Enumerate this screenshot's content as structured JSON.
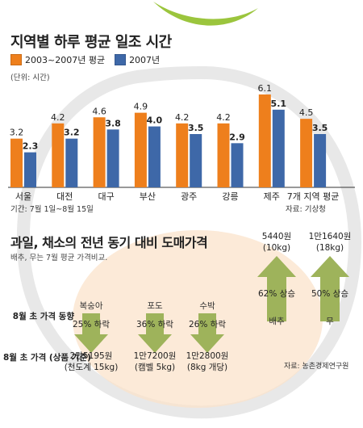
{
  "title": "지역별 하루 평균 일조 시간",
  "legend": {
    "series_a": "2003~2007년 평균",
    "series_b": "2007년"
  },
  "unit": "(단위: 시간)",
  "period": "기간: 7월 1일~8월 15일",
  "source": "자료: 기상청",
  "colors": {
    "series_a": "#ee7f1c",
    "series_b": "#3e68a8",
    "arrow": "#9eb35b",
    "peach": "#fbd8b3"
  },
  "chart_data": [
    {
      "type": "bar",
      "title": "지역별 하루 평균 일조 시간",
      "ylabel": "(단위: 시간)",
      "categories": [
        "서울",
        "대전",
        "대구",
        "부산",
        "광주",
        "강릉",
        "제주",
        "7개 지역 평균"
      ],
      "series": [
        {
          "name": "2003~2007년 평균",
          "values": [
            3.2,
            4.2,
            4.6,
            4.9,
            4.2,
            4.2,
            6.1,
            4.5
          ]
        },
        {
          "name": "2007년",
          "values": [
            2.3,
            3.2,
            3.8,
            4.0,
            3.5,
            2.9,
            5.1,
            3.5
          ]
        }
      ],
      "ylim": [
        0,
        7
      ],
      "grid": false,
      "legend_position": "top-left"
    },
    {
      "type": "table",
      "title": "과일, 채소의 전년 동기 대비 도매가격",
      "subtitle": "배추, 무는 7월 평균 가격비교.",
      "row_labels": {
        "trend": "8월 초 가격 동향",
        "price": "8월 초 가격 (상품 기준)"
      },
      "items": [
        {
          "name": "복숭아",
          "change_label": "25% 하락",
          "direction": "down",
          "price": "2만5195원",
          "unit": "(천도계 15kg)"
        },
        {
          "name": "포도",
          "change_label": "36% 하락",
          "direction": "down",
          "price": "1만7200원",
          "unit": "(캠벨 5kg)"
        },
        {
          "name": "수박",
          "change_label": "26% 하락",
          "direction": "down",
          "price": "1만2800원",
          "unit": "(8kg 개당)"
        },
        {
          "name": "배추",
          "change_label": "62% 상승",
          "direction": "up",
          "price": "5440원",
          "unit": "(10kg)"
        },
        {
          "name": "무",
          "change_label": "50% 상승",
          "direction": "up",
          "price": "1만1640원",
          "unit": "(18kg)"
        }
      ],
      "source": "자료: 농촌경제연구원"
    }
  ]
}
